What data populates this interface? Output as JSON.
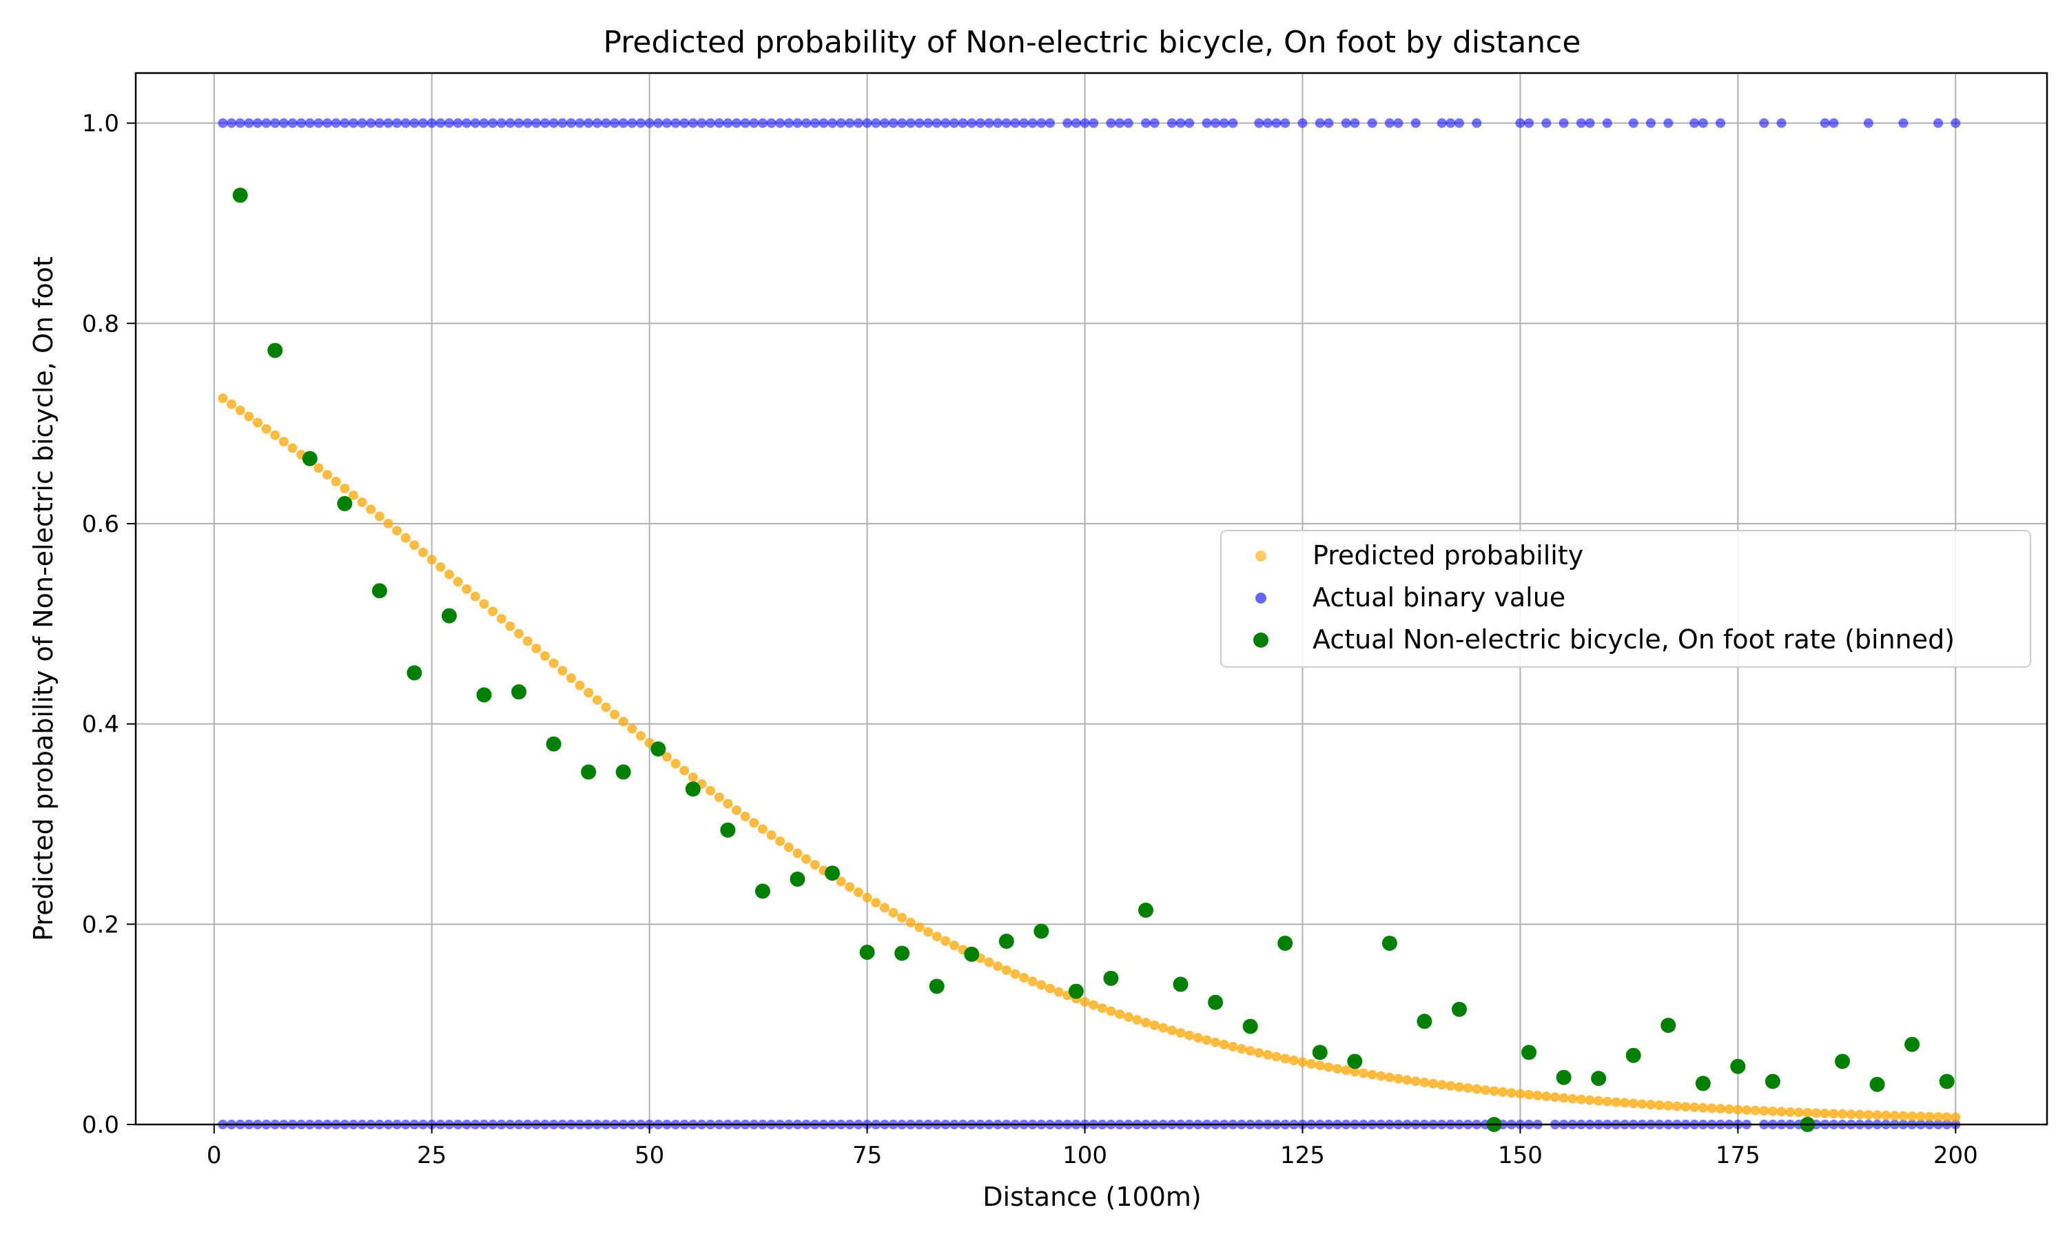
{
  "chart_data": {
    "type": "scatter",
    "title": "Predicted probability of Non-electric bicycle, On foot by distance",
    "xlabel": "Distance (100m)",
    "ylabel": "Predicted probability of Non-electric bicycle, On foot",
    "xlim": [
      -9,
      210.5
    ],
    "ylim": [
      0.0,
      1.05
    ],
    "xticks": [
      0,
      25,
      50,
      75,
      100,
      125,
      150,
      175,
      200
    ],
    "yticks": [
      0.0,
      0.2,
      0.4,
      0.6,
      0.8,
      1.0
    ],
    "xtick_labels": [
      "0",
      "25",
      "50",
      "75",
      "100",
      "125",
      "150",
      "175",
      "200"
    ],
    "ytick_labels": [
      "0.0",
      "0.2",
      "0.4",
      "0.6",
      "0.8",
      "1.0"
    ],
    "grid": true,
    "legend_position": "center-right",
    "colors": {
      "predicted": "#FFA500",
      "actual": "#0000FF",
      "binned": "#008000",
      "grid": "#B0B0B0"
    },
    "legend": [
      "Predicted probability",
      "Actual binary value",
      "Actual Non-electric bicycle, On foot rate (binned)"
    ],
    "predicted_logistic": {
      "x_start": 1,
      "x_end": 200,
      "x_step": 1,
      "intercept": 1.0,
      "slope": -0.0297
    },
    "actual_one_x": [
      1,
      2,
      3,
      4,
      5,
      6,
      7,
      8,
      9,
      10,
      11,
      12,
      13,
      14,
      15,
      16,
      17,
      18,
      19,
      20,
      21,
      22,
      23,
      24,
      25,
      26,
      27,
      28,
      29,
      30,
      31,
      32,
      33,
      34,
      35,
      36,
      37,
      38,
      39,
      40,
      41,
      42,
      43,
      44,
      45,
      46,
      47,
      48,
      49,
      50,
      51,
      52,
      53,
      54,
      55,
      56,
      57,
      58,
      59,
      60,
      61,
      62,
      63,
      64,
      65,
      66,
      67,
      68,
      69,
      70,
      71,
      72,
      73,
      74,
      75,
      76,
      77,
      78,
      79,
      80,
      81,
      82,
      83,
      84,
      85,
      86,
      87,
      88,
      89,
      90,
      91,
      92,
      93,
      94,
      95,
      96,
      98,
      99,
      100,
      101,
      103,
      104,
      105,
      107,
      108,
      110,
      111,
      112,
      114,
      115,
      116,
      117,
      120,
      121,
      122,
      123,
      125,
      127,
      128,
      130,
      131,
      133,
      135,
      136,
      138,
      141,
      142,
      143,
      145,
      150,
      151,
      153,
      155,
      157,
      158,
      160,
      163,
      165,
      167,
      170,
      171,
      173,
      178,
      180,
      185,
      186,
      190,
      194,
      198,
      200
    ],
    "actual_zero_x": [
      1,
      2,
      3,
      4,
      5,
      6,
      7,
      8,
      9,
      10,
      11,
      12,
      13,
      14,
      15,
      16,
      17,
      18,
      19,
      20,
      21,
      22,
      23,
      24,
      25,
      26,
      27,
      28,
      29,
      30,
      31,
      32,
      33,
      34,
      35,
      36,
      37,
      38,
      39,
      40,
      41,
      42,
      43,
      44,
      45,
      46,
      47,
      48,
      49,
      50,
      51,
      52,
      53,
      54,
      55,
      56,
      57,
      58,
      59,
      60,
      61,
      62,
      63,
      64,
      65,
      66,
      67,
      68,
      69,
      70,
      71,
      72,
      73,
      74,
      75,
      76,
      77,
      78,
      79,
      80,
      81,
      82,
      83,
      84,
      85,
      86,
      87,
      88,
      89,
      90,
      91,
      92,
      93,
      94,
      95,
      96,
      97,
      98,
      99,
      100,
      101,
      102,
      103,
      104,
      105,
      106,
      107,
      108,
      109,
      110,
      111,
      112,
      113,
      114,
      115,
      116,
      117,
      118,
      119,
      120,
      121,
      122,
      123,
      124,
      125,
      126,
      127,
      128,
      129,
      130,
      131,
      132,
      133,
      134,
      135,
      136,
      137,
      138,
      139,
      140,
      141,
      142,
      143,
      144,
      145,
      146,
      147,
      148,
      149,
      150,
      151,
      152,
      154,
      155,
      156,
      157,
      158,
      159,
      160,
      161,
      162,
      163,
      164,
      165,
      166,
      167,
      168,
      169,
      170,
      171,
      172,
      173,
      174,
      175,
      176,
      178,
      179,
      180,
      181,
      182,
      183,
      184,
      185,
      186,
      187,
      188,
      189,
      190,
      191,
      192,
      193,
      194,
      195,
      196,
      197,
      198,
      199,
      200
    ],
    "binned_x": [
      3,
      7,
      11,
      15,
      19,
      23,
      27,
      31,
      35,
      39,
      43,
      47,
      51,
      55,
      59,
      63,
      67,
      71,
      75,
      79,
      83,
      87,
      91,
      95,
      99,
      103,
      107,
      111,
      115,
      119,
      123,
      127,
      131,
      135,
      139,
      143,
      147,
      151,
      155,
      159,
      163,
      167,
      171,
      175,
      179,
      183,
      187,
      191,
      195,
      199
    ],
    "binned_y": [
      0.928,
      0.773,
      0.665,
      0.62,
      0.533,
      0.451,
      0.508,
      0.429,
      0.432,
      0.38,
      0.352,
      0.352,
      0.375,
      0.335,
      0.294,
      0.233,
      0.245,
      0.251,
      0.172,
      0.171,
      0.138,
      0.17,
      0.183,
      0.193,
      0.133,
      0.146,
      0.214,
      0.14,
      0.122,
      0.098,
      0.181,
      0.072,
      0.063,
      0.181,
      0.103,
      0.115,
      0.0,
      0.072,
      0.047,
      0.046,
      0.069,
      0.099,
      0.041,
      0.058,
      0.043,
      0.0,
      0.063,
      0.04,
      0.08,
      0.043
    ]
  }
}
